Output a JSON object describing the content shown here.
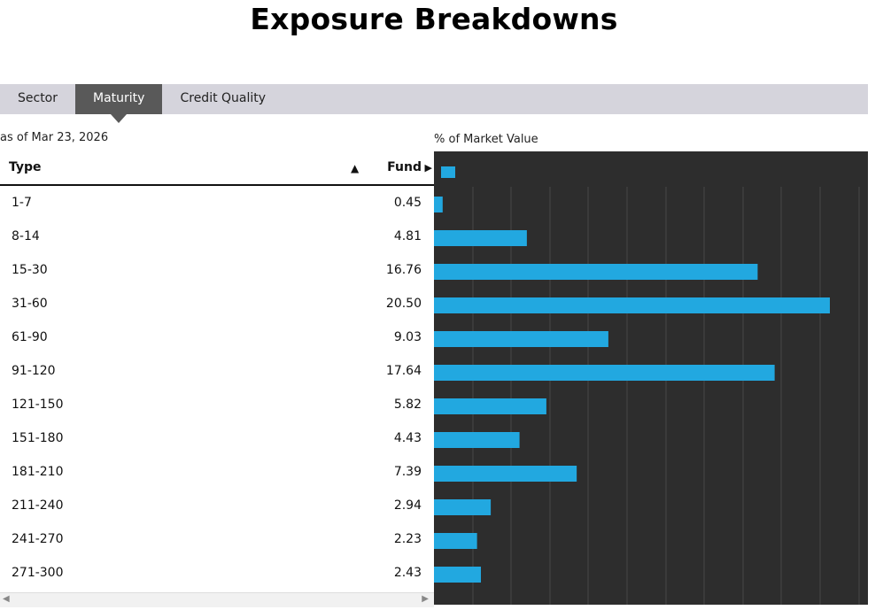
{
  "page_title": "Exposure Breakdowns",
  "tabs": [
    {
      "label": "Sector",
      "active": false
    },
    {
      "label": "Maturity",
      "active": true
    },
    {
      "label": "Credit Quality",
      "active": false
    }
  ],
  "as_of": "as of Mar 23, 2026",
  "chart_caption": "% of Market Value",
  "table": {
    "headers": {
      "type": "Type",
      "fund": "Fund"
    },
    "rows": [
      {
        "type": "1-7",
        "fund": "0.45"
      },
      {
        "type": "8-14",
        "fund": "4.81"
      },
      {
        "type": "15-30",
        "fund": "16.76"
      },
      {
        "type": "31-60",
        "fund": "20.50"
      },
      {
        "type": "61-90",
        "fund": "9.03"
      },
      {
        "type": "91-120",
        "fund": "17.64"
      },
      {
        "type": "121-150",
        "fund": "5.82"
      },
      {
        "type": "151-180",
        "fund": "4.43"
      },
      {
        "type": "181-210",
        "fund": "7.39"
      },
      {
        "type": "211-240",
        "fund": "2.94"
      },
      {
        "type": "241-270",
        "fund": "2.23"
      },
      {
        "type": "271-300",
        "fund": "2.43"
      }
    ]
  },
  "chart_data": {
    "type": "bar",
    "orientation": "horizontal",
    "categories": [
      "1-7",
      "8-14",
      "15-30",
      "31-60",
      "61-90",
      "91-120",
      "121-150",
      "151-180",
      "181-210",
      "211-240",
      "241-270",
      "271-300"
    ],
    "values": [
      0.45,
      4.81,
      16.76,
      20.5,
      9.03,
      17.64,
      5.82,
      4.43,
      7.39,
      2.94,
      2.23,
      2.43
    ],
    "xlim": [
      0,
      22
    ],
    "grid": true,
    "legend": "top-left",
    "colors": {
      "background": "#2d2d2d",
      "bar": "#22a8e0",
      "grid": "#484848"
    }
  },
  "colors": {
    "tab_active": "#595959",
    "tab_bar": "#d5d4dc"
  }
}
